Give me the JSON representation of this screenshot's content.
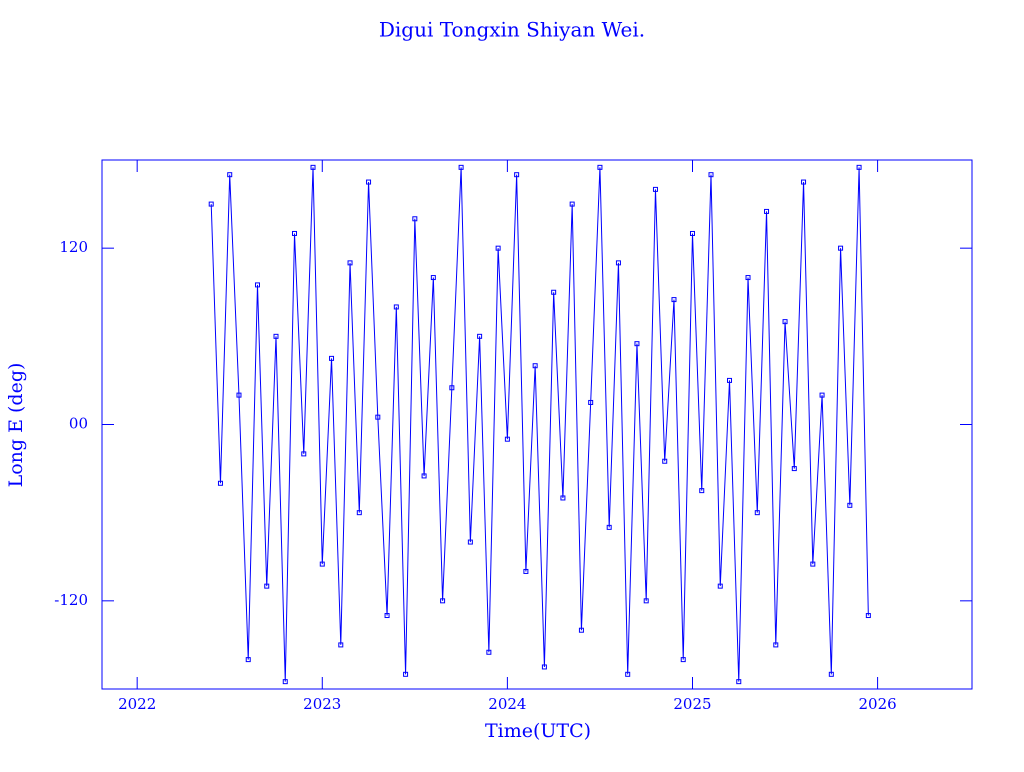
{
  "chart_data": {
    "type": "line",
    "title": "Digui Tongxin Shiyan Wei.",
    "x_label": "Time(UTC)",
    "y_label": "Long E (deg)",
    "xlim": [
      2021.81,
      2026.51
    ],
    "ylim": [
      -180,
      180
    ],
    "xticks": [
      2022,
      2023,
      2024,
      2025,
      2026
    ],
    "yticks": [
      -120,
      {
        "value": 0,
        "label": "00"
      },
      120
    ],
    "color": "#0000ff",
    "x": [
      2022.4,
      2022.45,
      2022.5,
      2022.55,
      2022.6,
      2022.65,
      2022.7,
      2022.75,
      2022.8,
      2022.85,
      2022.9,
      2022.95,
      2023.0,
      2023.05,
      2023.1,
      2023.15,
      2023.2,
      2023.25,
      2023.3,
      2023.35,
      2023.4,
      2023.45,
      2023.5,
      2023.55,
      2023.6,
      2023.65,
      2023.7,
      2023.75,
      2023.8,
      2023.85,
      2023.9,
      2023.95,
      2024.0,
      2024.05,
      2024.1,
      2024.15,
      2024.2,
      2024.25,
      2024.3,
      2024.35,
      2024.4,
      2024.45,
      2024.5,
      2024.55,
      2024.6,
      2024.65,
      2024.7,
      2024.75,
      2024.8,
      2024.85,
      2024.9,
      2024.95,
      2025.0,
      2025.05,
      2025.1,
      2025.15,
      2025.2,
      2025.25,
      2025.3,
      2025.35,
      2025.4,
      2025.45,
      2025.5,
      2025.55,
      2025.6,
      2025.65,
      2025.7,
      2025.75,
      2025.8,
      2025.85,
      2025.9,
      2025.95
    ],
    "values": [
      150,
      -40,
      170,
      20,
      -160,
      95,
      -110,
      60,
      -175,
      130,
      -20,
      175,
      -95,
      45,
      -150,
      110,
      -60,
      165,
      5,
      -130,
      80,
      -170,
      140,
      -35,
      100,
      -120,
      25,
      175,
      -80,
      60,
      -155,
      120,
      -10,
      170,
      -100,
      40,
      -165,
      90,
      -50,
      150,
      -140,
      15,
      175,
      -70,
      110,
      -170,
      55,
      -120,
      160,
      -25,
      85,
      -160,
      130,
      -45,
      170,
      -110,
      30,
      -175,
      100,
      -60,
      145,
      -150,
      70,
      -30,
      165,
      -95,
      20,
      -170,
      120,
      -55,
      175,
      -130
    ]
  }
}
